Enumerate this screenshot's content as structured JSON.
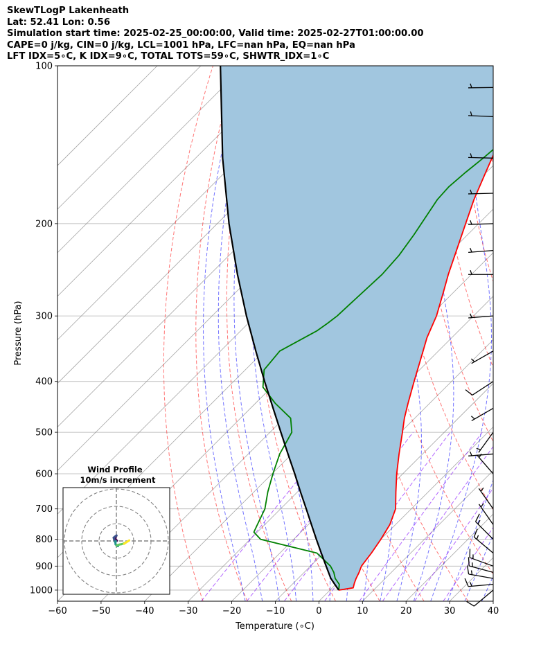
{
  "header": {
    "title": "SkewTLogP Lakenheath",
    "location": "Lat: 52.41   Lon: 0.56",
    "times": "Simulation start time: 2025-02-25_00:00:00, Valid time: 2025-02-27T01:00:00.00",
    "indices1": "CAPE=0 j/kg, CIN=0 j/kg, LCL=1001 hPa, LFC=nan hPa, EQ=nan hPa",
    "indices2": "LFT IDX=5∘C, K IDX=9∘C, TOTAL TOTS=59∘C, SHWTR_IDX=1∘C"
  },
  "chart_data": {
    "type": "line",
    "xlabel": "Temperature (∘C)",
    "ylabel": "Pressure (hPa)",
    "xlim": [
      -60,
      40
    ],
    "ylim": [
      1050,
      100
    ],
    "yscale": "log",
    "x_ticks": [
      "−60",
      "−50",
      "−40",
      "−30",
      "−20",
      "−10",
      "0",
      "10",
      "20",
      "30",
      "40"
    ],
    "x_tick_values": [
      -60,
      -50,
      -40,
      -30,
      -20,
      -10,
      0,
      10,
      20,
      30,
      40
    ],
    "y_ticks": [
      "100",
      "200",
      "300",
      "400",
      "500",
      "600",
      "700",
      "800",
      "900",
      "1000"
    ],
    "y_tick_values": [
      100,
      200,
      300,
      400,
      500,
      600,
      700,
      800,
      900,
      1000
    ],
    "grid": true,
    "series": [
      {
        "key": "temperature",
        "color": "#ff0000",
        "p": [
          1000,
          990,
          970,
          950,
          925,
          900,
          850,
          800,
          750,
          700,
          650,
          600,
          550,
          500,
          470,
          440,
          400,
          350,
          330,
          300,
          270,
          250,
          200,
          180,
          160,
          140,
          120,
          110,
          100
        ],
        "t": [
          2.0,
          4.8,
          4.0,
          3.3,
          2.6,
          1.7,
          1.0,
          0.0,
          -1.3,
          -3.6,
          -7.4,
          -11.4,
          -15.4,
          -19.6,
          -22.4,
          -25.0,
          -28.6,
          -33.5,
          -35.7,
          -38.5,
          -42.4,
          -45.3,
          -53.0,
          -56.6,
          -60.1,
          -64.0,
          -68.5,
          -71.5,
          -74.5
        ]
      },
      {
        "key": "dewpoint",
        "color": "#008000",
        "p": [
          1000,
          975,
          950,
          925,
          900,
          850,
          800,
          775,
          750,
          700,
          650,
          600,
          550,
          500,
          470,
          440,
          410,
          380,
          350,
          320,
          310,
          300,
          280,
          250,
          230,
          210,
          180,
          170,
          160,
          150,
          140,
          130,
          120,
          110,
          100
        ],
        "t": [
          2.0,
          0.8,
          -1.5,
          -3.2,
          -5.4,
          -11.5,
          -27.6,
          -30.8,
          -31.7,
          -33.6,
          -36.8,
          -39.8,
          -42.8,
          -45.0,
          -48.5,
          -55.5,
          -62.0,
          -65.7,
          -66.4,
          -62.5,
          -61.8,
          -61.3,
          -61.0,
          -60.5,
          -61.0,
          -62.3,
          -65.0,
          -65.3,
          -64.8,
          -64.0,
          -63.4,
          -62.6,
          -61.9,
          -61.2,
          -60.5
        ]
      },
      {
        "key": "parcel",
        "color": "#000000",
        "p": [
          1000,
          950,
          900,
          850,
          800,
          750,
          700,
          650,
          600,
          550,
          500,
          450,
          400,
          350,
          300,
          250,
          200,
          150,
          100
        ],
        "t": [
          2.0,
          -2.5,
          -6.4,
          -10.5,
          -14.8,
          -19.3,
          -24.1,
          -29.3,
          -34.8,
          -40.9,
          -47.5,
          -54.8,
          -62.9,
          -71.9,
          -82.1,
          -93.7,
          -107.3,
          -123.8,
          -145.5
        ]
      }
    ],
    "fill": {
      "between": [
        "temperature",
        "parcel"
      ],
      "color": "#a1c6df"
    },
    "dry_adiabat_color": "#ff0000",
    "moist_adiabat_color": "#0000ff",
    "mixing_ratio_color": "#8000ff",
    "isotherm_color": "#808080",
    "wind_barbs": [
      {
        "p": 1000,
        "u": 9.2,
        "v": 7.7
      },
      {
        "p": 975,
        "u": 12.7,
        "v": 1.1
      },
      {
        "p": 950,
        "u": 15.4,
        "v": -2.7
      },
      {
        "p": 925,
        "u": 15.0,
        "v": -4.0
      },
      {
        "p": 900,
        "u": 16.3,
        "v": -5.9
      },
      {
        "p": 850,
        "u": 11.1,
        "v": -9.3
      },
      {
        "p": 800,
        "u": 10.0,
        "v": -10.0
      },
      {
        "p": 750,
        "u": 5.7,
        "v": -8.2
      },
      {
        "p": 700,
        "u": 2.6,
        "v": -3.7
      },
      {
        "p": 600,
        "u": 3.3,
        "v": -3.8
      },
      {
        "p": 550,
        "u": 5.0,
        "v": 0.4
      },
      {
        "p": 500,
        "u": 3.1,
        "v": 4.3
      },
      {
        "p": 450,
        "u": 5.2,
        "v": 3.0
      },
      {
        "p": 400,
        "u": 8.4,
        "v": 5.5
      },
      {
        "p": 350,
        "u": 6.3,
        "v": 3.6
      },
      {
        "p": 300,
        "u": 7.5,
        "v": 0.6
      },
      {
        "p": 250,
        "u": 6.6,
        "v": 0.0
      },
      {
        "p": 225,
        "u": 6.4,
        "v": 0.5
      },
      {
        "p": 200,
        "u": 7.9,
        "v": 0.3
      },
      {
        "p": 175,
        "u": 7.5,
        "v": 0.2
      },
      {
        "p": 150,
        "u": 7.9,
        "v": -0.2
      },
      {
        "p": 125,
        "u": 7.2,
        "v": -0.3
      },
      {
        "p": 110,
        "u": 7.8,
        "v": 0.1
      }
    ],
    "wind_profile_inset": {
      "title": "Wind Profile",
      "subtitle": "10m/s increment",
      "rings": [
        10,
        20,
        30
      ],
      "colormap": [
        "#440154",
        "#3b528b",
        "#21918c",
        "#5ec962",
        "#fde725"
      ],
      "hodograph": [
        [
          -15.2,
          0.3
        ],
        [
          -16.3,
          1.2
        ],
        [
          -18.7,
          2.5
        ],
        [
          -17.0,
          4.1
        ],
        [
          -16.0,
          5.9
        ],
        [
          -17.6,
          5.0
        ],
        [
          -15.8,
          6.3
        ],
        [
          -19.2,
          3.8
        ],
        [
          -18.5,
          1.6
        ],
        [
          -17.8,
          -0.7
        ],
        [
          -16.6,
          -0.2
        ],
        [
          -17.1,
          -2.0
        ],
        [
          -16.9,
          -4.0
        ],
        [
          -14.2,
          -6.0
        ],
        [
          -15.9,
          -5.2
        ],
        [
          -12.2,
          -4.1
        ],
        [
          -9.9,
          -3.7
        ],
        [
          -7.1,
          -2.8
        ],
        [
          -4.4,
          -1.4
        ],
        [
          -2.6,
          -0.3
        ],
        [
          -1.2,
          0.6
        ],
        [
          -4.5,
          -1.5
        ],
        [
          -7.2,
          -3.4
        ]
      ]
    }
  }
}
